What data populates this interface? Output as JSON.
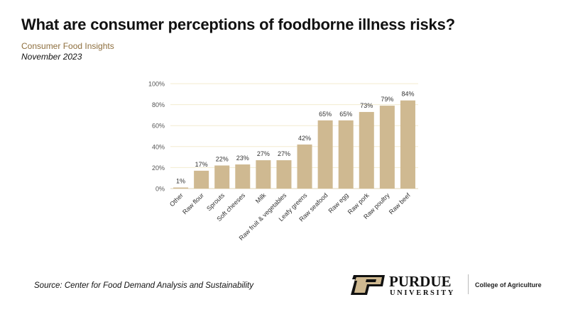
{
  "header": {
    "title": "What are consumer perceptions of foodborne illness risks?",
    "subtitle": "Consumer Food Insights",
    "date": "November 2023"
  },
  "footer": {
    "source": "Source:  Center for Food Demand Analysis and Sustainability",
    "logo_text": "PURDUE UNIVERSITY",
    "college": "College of Agriculture"
  },
  "colors": {
    "bar": "#cfb991",
    "grid": "#f3ebcf",
    "accent": "#8e6f3e"
  },
  "chart_data": {
    "type": "bar",
    "title": "",
    "xlabel": "",
    "ylabel": "",
    "categories": [
      "Other",
      "Raw flour",
      "Sprouts",
      "Soft cheeses",
      "Milk",
      "Raw fruit & vegetables",
      "Leafy greens",
      "Raw seafood",
      "Raw egg",
      "Raw pork",
      "Raw poultry",
      "Raw beef"
    ],
    "values": [
      1,
      17,
      22,
      23,
      27,
      27,
      42,
      65,
      65,
      73,
      79,
      84
    ],
    "data_labels": [
      "1%",
      "17%",
      "22%",
      "23%",
      "27%",
      "27%",
      "42%",
      "65%",
      "65%",
      "73%",
      "79%",
      "84%"
    ],
    "ylim": [
      0,
      100
    ],
    "yticks": [
      0,
      20,
      40,
      60,
      80,
      100
    ],
    "ytick_labels": [
      "0%",
      "20%",
      "40%",
      "60%",
      "80%",
      "100%"
    ],
    "grid": true,
    "legend": "none"
  }
}
